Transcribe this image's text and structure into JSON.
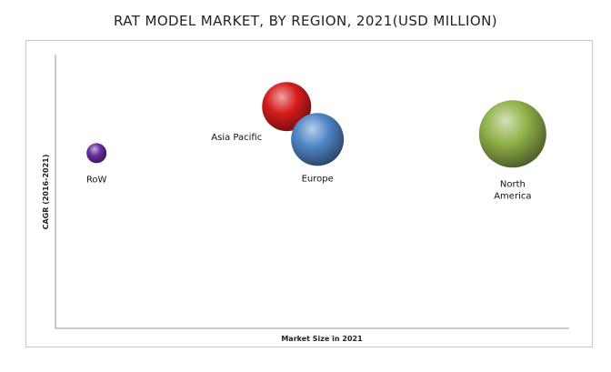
{
  "chart_data": {
    "type": "scatter",
    "subtype": "bubble",
    "title": "RAT MODEL MARKET, BY REGION, 2021(USD MILLION)",
    "xlabel": "Market Size in 2021",
    "ylabel": "CAGR (2016-2021)",
    "grid": false,
    "legend": "none",
    "axis_ticks": false,
    "xlim": [
      0,
      100
    ],
    "ylim": [
      0,
      100
    ],
    "series": [
      {
        "label": "RoW",
        "x": 8,
        "y": 64,
        "size": 11,
        "color": "#6a2c9e"
      },
      {
        "label": "Asia Pacific",
        "x": 45,
        "y": 81,
        "size": 27,
        "color": "#d81c1c"
      },
      {
        "label": "Europe",
        "x": 51,
        "y": 69,
        "size": 29,
        "color": "#4f86c6"
      },
      {
        "label": "North America",
        "label_lines": [
          "North",
          "America"
        ],
        "x": 89,
        "y": 71,
        "size": 37,
        "color": "#92b24a"
      }
    ]
  }
}
